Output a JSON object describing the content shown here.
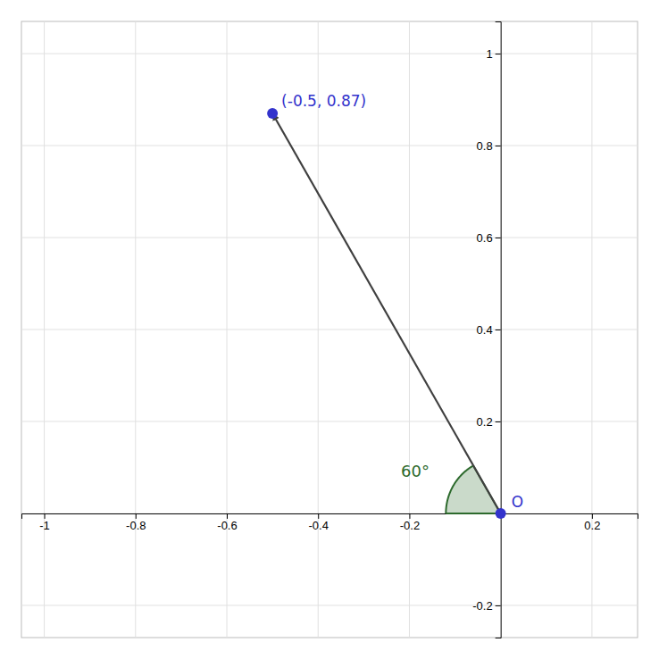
{
  "chart_data": {
    "type": "vector",
    "points": [
      {
        "label": "O",
        "x": 0.0,
        "y": 0.0,
        "color": "#3333cc"
      },
      {
        "label": "(-0.5, 0.87)",
        "x": -0.5,
        "y": 0.87,
        "color": "#3333cc"
      }
    ],
    "angle": {
      "label": "60°",
      "start_deg": 120,
      "extent_deg": 60,
      "radius": 0.12,
      "color": "#2d6a2d"
    },
    "xlim": [
      -1.05,
      0.3
    ],
    "ylim": [
      -0.27,
      1.07
    ],
    "xticks": [
      -1,
      -0.8,
      -0.6,
      -0.4,
      -0.2,
      0.2
    ],
    "yticks": [
      -0.2,
      0.2,
      0.4,
      0.6,
      0.8,
      1
    ],
    "grid": true
  }
}
